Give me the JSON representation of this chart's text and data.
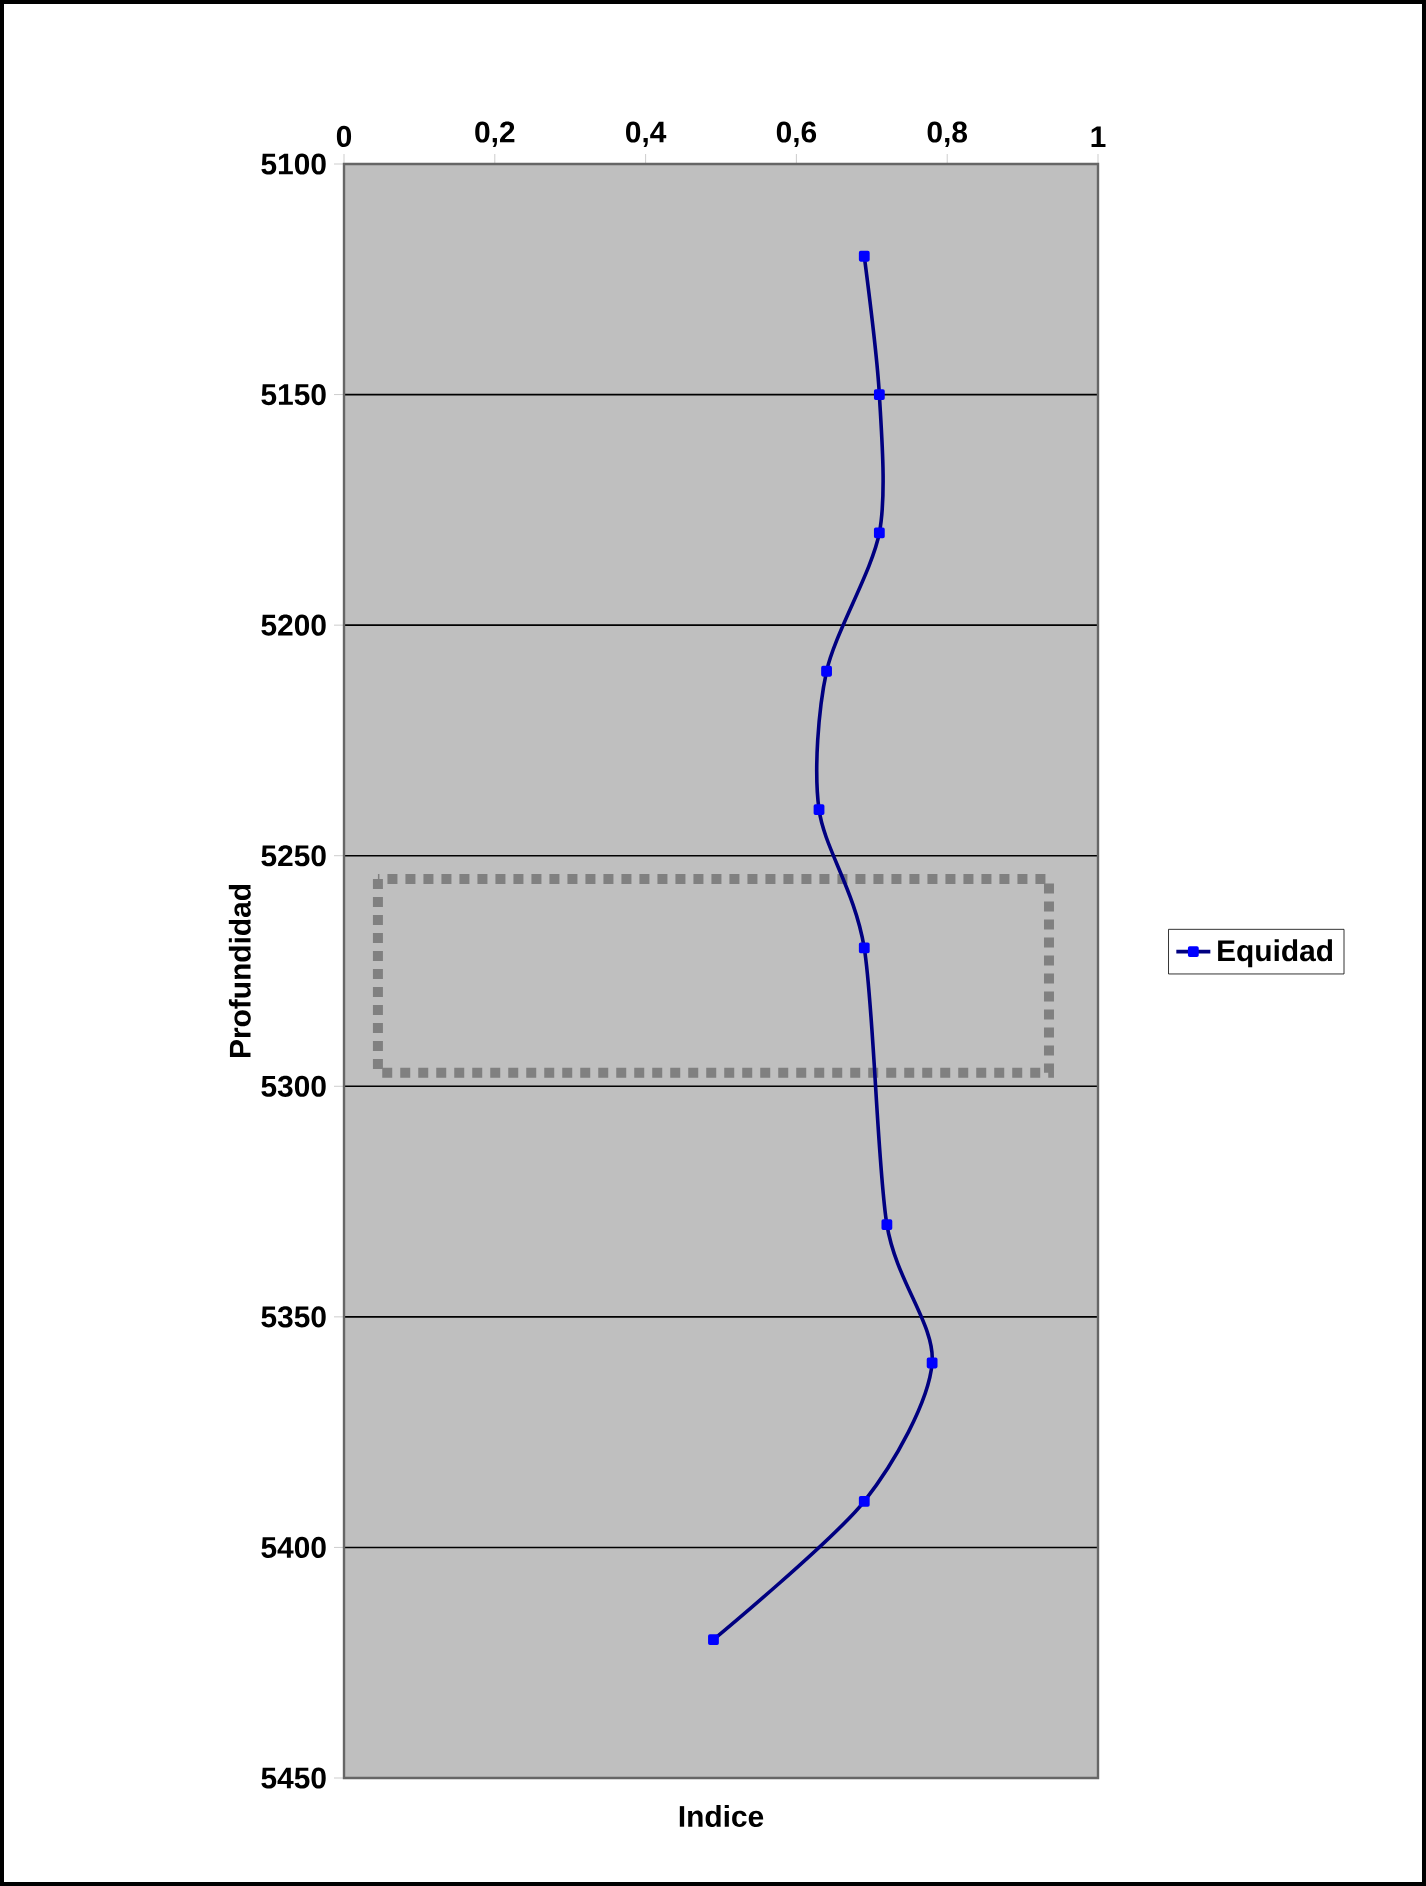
{
  "chart_data": {
    "type": "line",
    "xlabel": "Indice",
    "ylabel": "Profundidad",
    "xlim": [
      0,
      1
    ],
    "xticks": [
      0,
      {
        "value": 0.2,
        "label": "0,2"
      },
      {
        "value": 0.4,
        "label": "0,4"
      },
      {
        "value": 0.6,
        "label": "0,6"
      },
      {
        "value": 0.8,
        "label": "0,8"
      },
      1
    ],
    "ylim": [
      5450,
      5100
    ],
    "yticks": [
      5100,
      5150,
      5200,
      5250,
      5300,
      5350,
      5400,
      5450
    ],
    "grid": "y",
    "legend": "right",
    "marker": "square",
    "series": [
      {
        "name": "Equidad",
        "color": "#000080",
        "x": [
          0.69,
          0.71,
          0.71,
          0.64,
          0.63,
          0.69,
          0.72,
          0.78,
          0.69,
          0.49
        ],
        "values": [
          5120,
          5150,
          5180,
          5210,
          5240,
          5270,
          5330,
          5360,
          5390,
          5420
        ]
      }
    ]
  }
}
